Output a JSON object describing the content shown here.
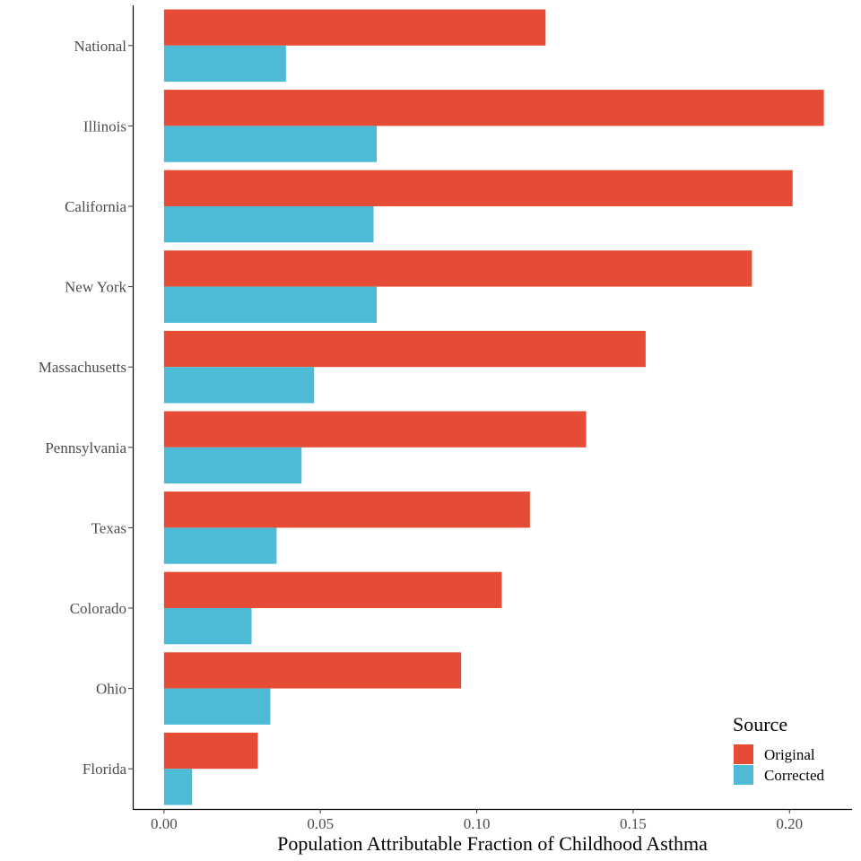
{
  "chart_data": {
    "type": "bar",
    "orientation": "horizontal",
    "title": "",
    "xlabel": "Population Attributable Fraction of Childhood Asthma",
    "ylabel": "",
    "xlim": [
      -0.01,
      0.22
    ],
    "xticks": [
      0.0,
      0.05,
      0.1,
      0.15,
      0.2
    ],
    "xtick_labels": [
      "0.00",
      "0.05",
      "0.10",
      "0.15",
      "0.20"
    ],
    "categories": [
      "National",
      "Illinois",
      "California",
      "New York",
      "Massachusetts",
      "Pennsylvania",
      "Texas",
      "Colorado",
      "Ohio",
      "Florida"
    ],
    "series": [
      {
        "name": "Original",
        "color": "#E64B35",
        "values": [
          0.122,
          0.211,
          0.201,
          0.188,
          0.154,
          0.135,
          0.117,
          0.108,
          0.095,
          0.03
        ]
      },
      {
        "name": "Corrected",
        "color": "#4DBBD5",
        "values": [
          0.039,
          0.068,
          0.067,
          0.068,
          0.048,
          0.044,
          0.036,
          0.028,
          0.034,
          0.009
        ]
      }
    ],
    "legend": {
      "title": "Source",
      "position": "bottom-right"
    },
    "grid": false
  }
}
